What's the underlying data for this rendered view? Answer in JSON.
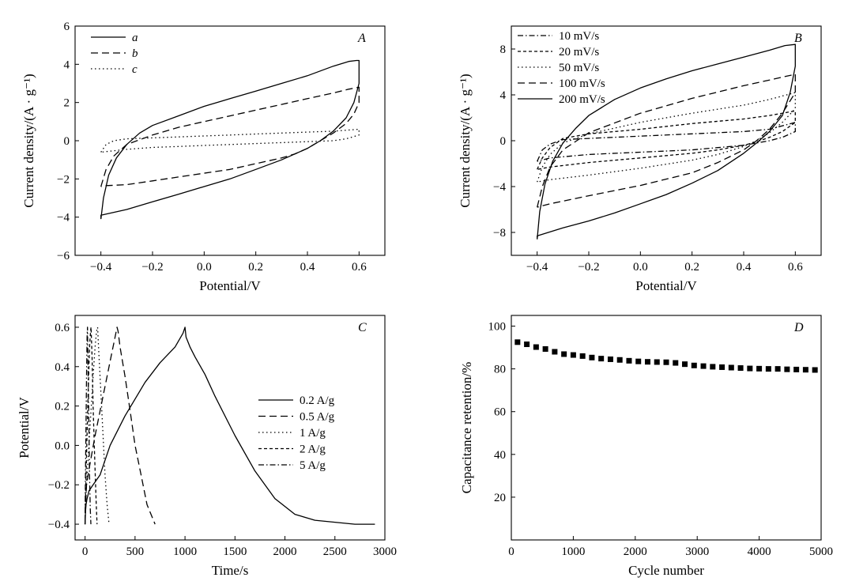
{
  "chart_data": [
    {
      "panel_label": "A",
      "type": "line",
      "xlabel": "Potential/V",
      "ylabel": "Current density/(A · g⁻¹)",
      "xlim": [
        -0.5,
        0.7
      ],
      "ylim": [
        -6,
        6
      ],
      "xticks": [
        -0.4,
        -0.2,
        0.0,
        0.2,
        0.4,
        0.6
      ],
      "xtick_labels": [
        "−0.4",
        "−0.2",
        "0.0",
        "0.2",
        "0.4",
        "0.6"
      ],
      "yticks": [
        -6,
        -4,
        -2,
        0,
        2,
        4,
        6
      ],
      "ytick_labels": [
        "−6",
        "−4",
        "−2",
        "0",
        "2",
        "4",
        "6"
      ],
      "legend_position": "top-left",
      "series": [
        {
          "name": "a",
          "style": "solid",
          "x": [
            -0.4,
            -0.39,
            -0.37,
            -0.34,
            -0.3,
            -0.25,
            -0.2,
            -0.1,
            0.0,
            0.1,
            0.2,
            0.3,
            0.4,
            0.5,
            0.56,
            0.59,
            0.6,
            0.6,
            0.58,
            0.55,
            0.5,
            0.45,
            0.4,
            0.3,
            0.2,
            0.1,
            0.0,
            -0.1,
            -0.2,
            -0.3,
            -0.4,
            -0.4
          ],
          "y": [
            -4.1,
            -3.0,
            -1.8,
            -0.9,
            -0.2,
            0.4,
            0.8,
            1.3,
            1.8,
            2.2,
            2.6,
            3.0,
            3.4,
            3.9,
            4.15,
            4.2,
            4.2,
            3.0,
            2.0,
            1.2,
            0.5,
            0.0,
            -0.4,
            -1.0,
            -1.5,
            -2.0,
            -2.4,
            -2.8,
            -3.2,
            -3.6,
            -3.9,
            -4.1
          ]
        },
        {
          "name": "b",
          "style": "dashed",
          "x": [
            -0.4,
            -0.38,
            -0.35,
            -0.3,
            -0.2,
            -0.1,
            0.0,
            0.1,
            0.2,
            0.3,
            0.4,
            0.5,
            0.56,
            0.6,
            0.6,
            0.58,
            0.55,
            0.5,
            0.45,
            0.4,
            0.35,
            0.3,
            0.2,
            0.1,
            0.0,
            -0.1,
            -0.2,
            -0.3,
            -0.38,
            -0.4
          ],
          "y": [
            -2.4,
            -1.5,
            -0.8,
            -0.2,
            0.3,
            0.7,
            1.0,
            1.3,
            1.6,
            1.9,
            2.2,
            2.5,
            2.7,
            2.8,
            2.0,
            1.4,
            0.9,
            0.4,
            0.0,
            -0.4,
            -0.7,
            -0.9,
            -1.2,
            -1.5,
            -1.7,
            -1.9,
            -2.1,
            -2.3,
            -2.35,
            -2.4
          ]
        },
        {
          "name": "c",
          "style": "dotted",
          "x": [
            -0.4,
            -0.38,
            -0.35,
            -0.3,
            -0.2,
            -0.1,
            0.0,
            0.1,
            0.2,
            0.3,
            0.4,
            0.5,
            0.6,
            0.6,
            0.55,
            0.5,
            0.4,
            0.3,
            0.2,
            0.1,
            0.0,
            -0.1,
            -0.2,
            -0.3,
            -0.4
          ],
          "y": [
            -0.6,
            -0.2,
            0.0,
            0.1,
            0.15,
            0.2,
            0.25,
            0.3,
            0.35,
            0.4,
            0.45,
            0.5,
            0.6,
            0.3,
            0.1,
            0.0,
            -0.05,
            -0.1,
            -0.15,
            -0.2,
            -0.25,
            -0.3,
            -0.35,
            -0.45,
            -0.6
          ]
        }
      ]
    },
    {
      "panel_label": "B",
      "type": "line",
      "xlabel": "Potential/V",
      "ylabel": "Current density/(A · g⁻¹)",
      "xlim": [
        -0.5,
        0.7
      ],
      "ylim": [
        -10,
        10
      ],
      "xticks": [
        -0.4,
        -0.2,
        0.0,
        0.2,
        0.4,
        0.6
      ],
      "xtick_labels": [
        "−0.4",
        "−0.2",
        "0.0",
        "0.2",
        "0.4",
        "0.6"
      ],
      "yticks": [
        -8,
        -4,
        0,
        4,
        8
      ],
      "ytick_labels": [
        "−8",
        "−4",
        "0",
        "4",
        "8"
      ],
      "legend_position": "top-left",
      "series": [
        {
          "name": "10 mV/s",
          "style": "dashdot",
          "x": [
            -0.4,
            -0.38,
            -0.35,
            -0.3,
            -0.2,
            0.0,
            0.2,
            0.4,
            0.5,
            0.6,
            0.6,
            0.55,
            0.5,
            0.45,
            0.4,
            0.3,
            0.2,
            0.0,
            -0.2,
            -0.35,
            -0.4
          ],
          "y": [
            -1.8,
            -0.8,
            -0.3,
            0.1,
            0.2,
            0.4,
            0.6,
            0.8,
            1.0,
            1.6,
            0.8,
            0.3,
            0.0,
            -0.2,
            -0.4,
            -0.6,
            -0.8,
            -1.0,
            -1.2,
            -1.5,
            -1.8
          ]
        },
        {
          "name": "20 mV/s",
          "style": "short-dashed",
          "x": [
            -0.4,
            -0.38,
            -0.35,
            -0.3,
            -0.2,
            0.0,
            0.2,
            0.4,
            0.5,
            0.6,
            0.6,
            0.55,
            0.5,
            0.45,
            0.4,
            0.3,
            0.2,
            0.0,
            -0.2,
            -0.35,
            -0.4
          ],
          "y": [
            -2.5,
            -1.5,
            -0.6,
            0.2,
            0.6,
            1.0,
            1.5,
            1.9,
            2.2,
            2.6,
            1.6,
            0.8,
            0.3,
            -0.1,
            -0.4,
            -0.8,
            -1.1,
            -1.5,
            -1.9,
            -2.3,
            -2.5
          ]
        },
        {
          "name": "50 mV/s",
          "style": "dotted",
          "x": [
            -0.4,
            -0.38,
            -0.35,
            -0.3,
            -0.2,
            0.0,
            0.2,
            0.4,
            0.5,
            0.6,
            0.6,
            0.55,
            0.5,
            0.45,
            0.4,
            0.3,
            0.2,
            0.0,
            -0.2,
            -0.35,
            -0.4
          ],
          "y": [
            -3.6,
            -2.3,
            -1.2,
            -0.2,
            0.6,
            1.6,
            2.4,
            3.1,
            3.6,
            4.2,
            2.8,
            1.6,
            0.7,
            0.0,
            -0.5,
            -1.2,
            -1.7,
            -2.4,
            -3.0,
            -3.4,
            -3.6
          ]
        },
        {
          "name": "100 mV/s",
          "style": "dashed",
          "x": [
            -0.4,
            -0.38,
            -0.35,
            -0.3,
            -0.2,
            0.0,
            0.2,
            0.4,
            0.5,
            0.6,
            0.6,
            0.55,
            0.5,
            0.45,
            0.4,
            0.3,
            0.2,
            0.0,
            -0.2,
            -0.35,
            -0.4
          ],
          "y": [
            -5.8,
            -4.0,
            -2.3,
            -0.8,
            0.7,
            2.4,
            3.7,
            4.8,
            5.3,
            5.8,
            4.2,
            2.4,
            1.0,
            0.0,
            -0.8,
            -1.9,
            -2.8,
            -3.9,
            -4.8,
            -5.5,
            -5.8
          ]
        },
        {
          "name": "200 mV/s",
          "style": "solid",
          "x": [
            -0.4,
            -0.39,
            -0.37,
            -0.34,
            -0.3,
            -0.25,
            -0.2,
            -0.1,
            0.0,
            0.1,
            0.2,
            0.3,
            0.4,
            0.5,
            0.56,
            0.6,
            0.6,
            0.58,
            0.55,
            0.5,
            0.45,
            0.4,
            0.3,
            0.2,
            0.1,
            0.0,
            -0.1,
            -0.2,
            -0.3,
            -0.4,
            -0.4
          ],
          "y": [
            -8.6,
            -6.2,
            -3.8,
            -1.8,
            -0.2,
            1.1,
            2.2,
            3.6,
            4.6,
            5.4,
            6.1,
            6.7,
            7.3,
            7.9,
            8.3,
            8.4,
            6.5,
            4.2,
            2.2,
            0.8,
            -0.2,
            -1.1,
            -2.6,
            -3.7,
            -4.7,
            -5.5,
            -6.3,
            -7.0,
            -7.6,
            -8.3,
            -8.6
          ]
        }
      ]
    },
    {
      "panel_label": "C",
      "type": "line",
      "xlabel": "Time/s",
      "ylabel": "Potential/V",
      "xlim": [
        -100,
        3000
      ],
      "ylim": [
        -0.48,
        0.66
      ],
      "xticks": [
        0,
        500,
        1000,
        1500,
        2000,
        2500,
        3000
      ],
      "xtick_labels": [
        "0",
        "500",
        "1000",
        "1500",
        "2000",
        "2500",
        "3000"
      ],
      "yticks": [
        -0.4,
        -0.2,
        0.0,
        0.2,
        0.4,
        0.6
      ],
      "ytick_labels": [
        "−0.4",
        "−0.2",
        "0.0",
        "0.2",
        "0.4",
        "0.6"
      ],
      "legend_position": "center-right",
      "series": [
        {
          "name": "0.2 A/g",
          "style": "solid",
          "x": [
            0,
            5,
            10,
            20,
            40,
            80,
            150,
            250,
            400,
            600,
            750,
            900,
            980,
            1000,
            1010,
            1050,
            1100,
            1200,
            1300,
            1500,
            1700,
            1900,
            2100,
            2300,
            2500,
            2700,
            2900
          ],
          "y": [
            -0.4,
            -0.33,
            -0.3,
            -0.27,
            -0.23,
            -0.2,
            -0.15,
            0.0,
            0.15,
            0.32,
            0.42,
            0.5,
            0.57,
            0.6,
            0.55,
            0.5,
            0.45,
            0.36,
            0.25,
            0.05,
            -0.13,
            -0.27,
            -0.35,
            -0.38,
            -0.39,
            -0.4,
            -0.4
          ]
        },
        {
          "name": "0.5 A/g",
          "style": "dashed",
          "x": [
            0,
            5,
            15,
            40,
            100,
            180,
            260,
            300,
            320,
            330,
            350,
            400,
            450,
            500,
            560,
            620,
            700
          ],
          "y": [
            -0.4,
            -0.3,
            -0.2,
            -0.12,
            0.05,
            0.25,
            0.45,
            0.55,
            0.6,
            0.58,
            0.5,
            0.35,
            0.18,
            0.0,
            -0.15,
            -0.3,
            -0.4
          ]
        },
        {
          "name": "1 A/g",
          "style": "dotted",
          "x": [
            0,
            5,
            20,
            50,
            80,
            100,
            115,
            125,
            140,
            160,
            180,
            200,
            220,
            240
          ],
          "y": [
            -0.4,
            -0.3,
            -0.15,
            0.1,
            0.35,
            0.5,
            0.58,
            0.6,
            0.45,
            0.25,
            0.05,
            -0.15,
            -0.3,
            -0.4
          ]
        },
        {
          "name": "2 A/g",
          "style": "short-dashed",
          "x": [
            0,
            5,
            15,
            30,
            45,
            55,
            60,
            70,
            80,
            95,
            110,
            120
          ],
          "y": [
            -0.4,
            -0.25,
            -0.05,
            0.25,
            0.5,
            0.58,
            0.6,
            0.45,
            0.2,
            -0.05,
            -0.28,
            -0.4
          ]
        },
        {
          "name": "5 A/g",
          "style": "dashdot",
          "x": [
            0,
            3,
            8,
            15,
            20,
            24,
            30,
            38,
            45,
            52,
            58
          ],
          "y": [
            -0.4,
            -0.2,
            0.05,
            0.35,
            0.55,
            0.6,
            0.4,
            0.1,
            -0.15,
            -0.32,
            -0.4
          ]
        }
      ]
    },
    {
      "panel_label": "D",
      "type": "scatter",
      "xlabel": "Cycle number",
      "ylabel": "Capacitance retention/%",
      "xlim": [
        0,
        5000
      ],
      "ylim": [
        0,
        105
      ],
      "xticks": [
        0,
        1000,
        2000,
        3000,
        4000,
        5000
      ],
      "xtick_labels": [
        "0",
        "1000",
        "2000",
        "3000",
        "4000",
        "5000"
      ],
      "yticks": [
        20,
        40,
        60,
        80,
        100
      ],
      "ytick_labels": [
        "20",
        "40",
        "60",
        "80",
        "100"
      ],
      "series": [
        {
          "name": "",
          "style": "square-marker",
          "x": [
            100,
            250,
            400,
            550,
            700,
            850,
            1000,
            1150,
            1300,
            1450,
            1600,
            1750,
            1900,
            2050,
            2200,
            2350,
            2500,
            2650,
            2800,
            2950,
            3100,
            3250,
            3400,
            3550,
            3700,
            3850,
            4000,
            4150,
            4300,
            4450,
            4600,
            4750,
            4900
          ],
          "y": [
            92.5,
            91.5,
            90.2,
            89.3,
            88.0,
            86.9,
            86.5,
            86.0,
            85.3,
            84.8,
            84.5,
            84.2,
            83.8,
            83.5,
            83.3,
            83.2,
            83.1,
            82.8,
            82.2,
            81.6,
            81.3,
            81.0,
            80.8,
            80.6,
            80.4,
            80.2,
            80.1,
            80.0,
            80.0,
            79.8,
            79.7,
            79.6,
            79.5
          ]
        }
      ]
    }
  ]
}
